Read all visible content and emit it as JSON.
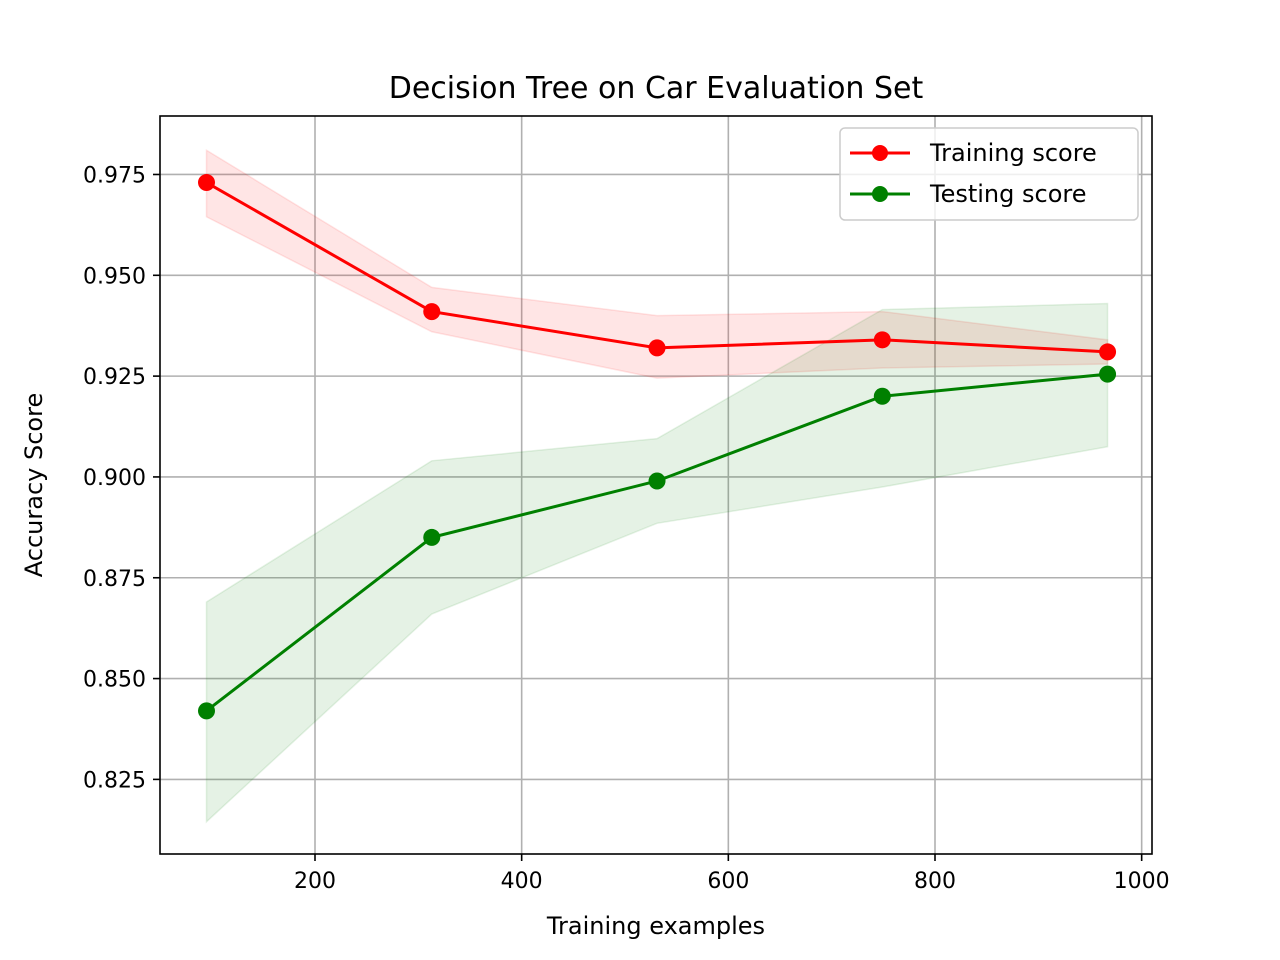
{
  "chart_data": {
    "type": "line",
    "title": "Decision Tree on Car Evaluation Set",
    "xlabel": "Training examples",
    "ylabel": "Accuracy Score",
    "xlim": [
      50,
      1010
    ],
    "ylim": [
      0.8065,
      0.9895
    ],
    "xticks": [
      200,
      400,
      600,
      800,
      1000
    ],
    "yticks": [
      0.825,
      0.85,
      0.875,
      0.9,
      0.925,
      0.95,
      0.975
    ],
    "xtick_labels": [
      "200",
      "400",
      "600",
      "800",
      "1000"
    ],
    "ytick_labels": [
      "0.825",
      "0.850",
      "0.875",
      "0.900",
      "0.925",
      "0.950",
      "0.975"
    ],
    "grid": true,
    "legend_position": "top-right",
    "x": [
      95,
      313,
      531,
      749,
      967
    ],
    "series": [
      {
        "name": "Training score",
        "color": "#ff0000",
        "values": [
          0.973,
          0.941,
          0.932,
          0.934,
          0.931
        ],
        "upper": [
          0.981,
          0.947,
          0.94,
          0.941,
          0.934
        ],
        "lower": [
          0.9645,
          0.936,
          0.9245,
          0.927,
          0.928
        ],
        "band_color": "#ff0000"
      },
      {
        "name": "Testing score",
        "color": "#008000",
        "values": [
          0.842,
          0.885,
          0.899,
          0.92,
          0.9255
        ],
        "upper": [
          0.869,
          0.904,
          0.9095,
          0.9415,
          0.943
        ],
        "lower": [
          0.8145,
          0.866,
          0.8885,
          0.8975,
          0.9075
        ],
        "band_color": "#008000"
      }
    ]
  }
}
